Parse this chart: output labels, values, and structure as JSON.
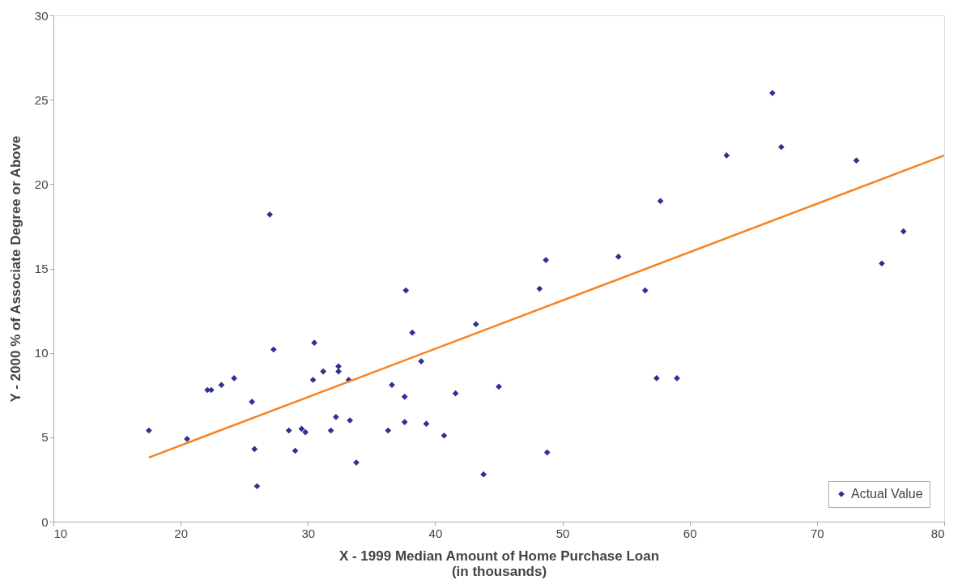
{
  "chart_data": {
    "type": "scatter",
    "xlabel": "X - 1999 Median Amount of Home Purchase Loan\n(in thousands)",
    "ylabel": "Y - 2000 % of Associate Degree or Above",
    "xlim": [
      10,
      80
    ],
    "xticks": [
      10,
      20,
      30,
      40,
      50,
      60,
      70,
      80
    ],
    "ylim": [
      0,
      30
    ],
    "yticks": [
      0,
      5,
      10,
      15,
      20,
      25,
      30
    ],
    "grid": false,
    "legend": "bottom right",
    "series": [
      {
        "name": "Actual Value",
        "color": "#2e3192",
        "marker": "diamond",
        "x": [
          17.5,
          20.5,
          22.1,
          22.4,
          23.2,
          24.2,
          25.6,
          25.8,
          26.0,
          27.0,
          27.3,
          28.5,
          29.0,
          29.5,
          29.8,
          30.4,
          30.5,
          31.2,
          31.8,
          32.2,
          32.4,
          32.4,
          33.2,
          33.3,
          33.8,
          36.3,
          36.6,
          37.6,
          37.6,
          37.7,
          38.2,
          38.9,
          39.3,
          40.7,
          41.6,
          43.2,
          43.8,
          45.0,
          48.2,
          48.7,
          48.8,
          54.4,
          56.5,
          57.4,
          57.7,
          59.0,
          62.9,
          66.5,
          67.2,
          73.1,
          75.1,
          76.8
        ],
        "values": [
          5.4,
          4.9,
          7.8,
          7.8,
          8.1,
          8.5,
          7.1,
          4.3,
          2.1,
          18.2,
          10.2,
          5.4,
          4.2,
          5.5,
          5.3,
          8.4,
          10.6,
          8.9,
          5.4,
          6.2,
          9.2,
          8.9,
          8.4,
          6.0,
          3.5,
          5.4,
          8.1,
          7.4,
          5.9,
          13.7,
          11.2,
          9.5,
          5.8,
          5.1,
          7.6,
          11.7,
          2.8,
          8.0,
          13.8,
          15.5,
          4.1,
          15.7,
          13.7,
          8.5,
          19.0,
          8.5,
          21.7,
          25.4,
          22.2,
          21.4,
          15.3,
          17.2
        ]
      },
      {
        "type": "line",
        "color": "#f7821e",
        "marker": "none",
        "x": [
          17.5,
          80
        ],
        "values": [
          3.8,
          21.7
        ]
      }
    ]
  }
}
